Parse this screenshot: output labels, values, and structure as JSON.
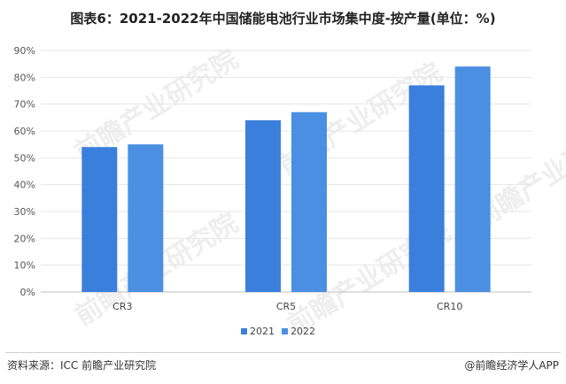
{
  "title": "图表6：2021-2022年中国储能电池行业市场集中度-按产量(单位：%)",
  "chart_data": {
    "type": "bar",
    "categories": [
      "CR3",
      "CR5",
      "CR10"
    ],
    "series": [
      {
        "name": "2021",
        "values": [
          54,
          64,
          77
        ],
        "color": "#3a7fdc"
      },
      {
        "name": "2022",
        "values": [
          55,
          67,
          84
        ],
        "color": "#4a8fe2"
      }
    ],
    "ylim": [
      0,
      90
    ],
    "yticks": [
      "0%",
      "10%",
      "20%",
      "30%",
      "40%",
      "50%",
      "60%",
      "70%",
      "80%",
      "90%"
    ],
    "grid": true,
    "legend": "bottom-center"
  },
  "watermark": "前瞻产业研究院",
  "footer": {
    "source": "资料来源：ICC 前瞻产业研究院",
    "credit": "@前瞻经济学人APP"
  }
}
